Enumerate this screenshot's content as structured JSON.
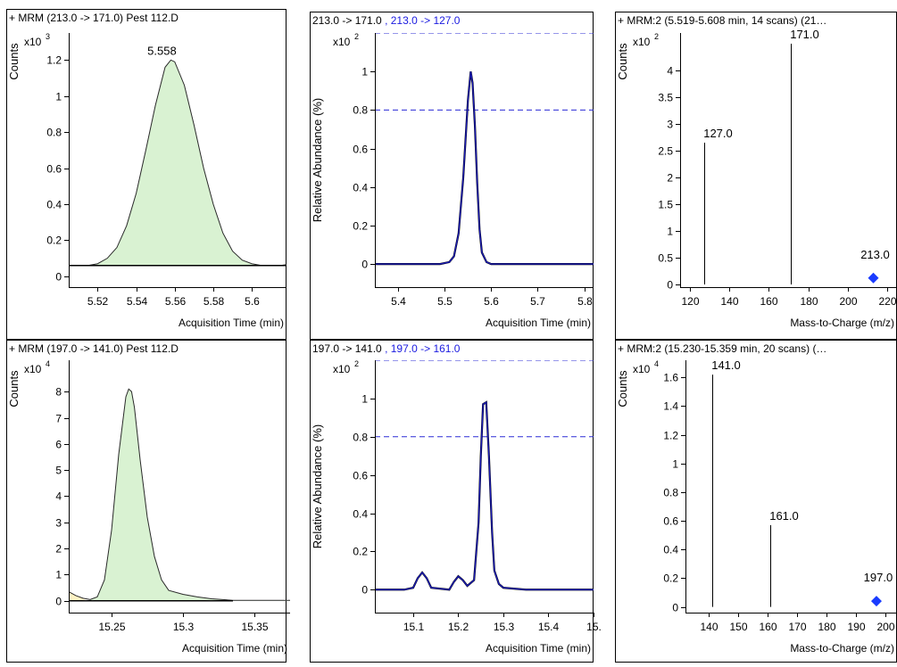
{
  "colors": {
    "peak_fill": "#d9f2d2",
    "peak_line": "#2a2a2a",
    "trace_blue": "#1a1ab4",
    "ref_dash": "#2b2bd6",
    "qualifier_text": "#1a1ae0",
    "marker": "#1a3cff",
    "yellow_fill": "#fff3c4"
  },
  "chart_data": [
    {
      "type": "area",
      "header": "+ MRM (213.0 -> 171.0) Pest 112.D",
      "ylabel": "Counts",
      "scale_label": "x10",
      "scale_exp": "3",
      "xlabel": "Acquisition Time (min)",
      "xlim": [
        5.505,
        5.618
      ],
      "ylim": [
        -0.06,
        1.35
      ],
      "xticks": [
        "5.52",
        "5.54",
        "5.56",
        "5.58",
        "5.6"
      ],
      "yticks": [
        "0",
        "0.2",
        "0.4",
        "0.6",
        "0.8",
        "1",
        "1.2"
      ],
      "peak_label": "5.558",
      "peak_x": 5.558,
      "peak_y": 1.2,
      "x": [
        5.505,
        5.515,
        5.52,
        5.525,
        5.53,
        5.535,
        5.54,
        5.545,
        5.55,
        5.555,
        5.558,
        5.56,
        5.565,
        5.57,
        5.575,
        5.58,
        5.585,
        5.59,
        5.595,
        5.6,
        5.605,
        5.61,
        5.615,
        5.618
      ],
      "y": [
        0.06,
        0.06,
        0.07,
        0.1,
        0.16,
        0.28,
        0.46,
        0.7,
        0.95,
        1.16,
        1.2,
        1.19,
        1.06,
        0.84,
        0.6,
        0.4,
        0.24,
        0.14,
        0.09,
        0.07,
        0.06,
        0.06,
        0.06,
        0.065
      ],
      "baseline": 0.06
    },
    {
      "type": "line",
      "header": "213.0 -> 171.0",
      "header_qualifier": " , 213.0 -> 127.0",
      "ylabel": "Relative Abundance (%)",
      "scale_label": "x10",
      "scale_exp": "2",
      "xlabel": "Acquisition Time (min)",
      "xlim": [
        5.35,
        5.82
      ],
      "ylim": [
        -0.12,
        1.2
      ],
      "xticks": [
        "5.4",
        "5.5",
        "5.6",
        "5.7",
        "5.8"
      ],
      "yticks": [
        "0",
        "0.2",
        "0.4",
        "0.6",
        "0.8",
        "1"
      ],
      "ref_lines": [
        0.8,
        1.2
      ],
      "x": [
        5.35,
        5.45,
        5.49,
        5.51,
        5.52,
        5.53,
        5.54,
        5.55,
        5.556,
        5.56,
        5.565,
        5.57,
        5.575,
        5.58,
        5.59,
        5.6,
        5.65,
        5.7,
        5.75,
        5.8,
        5.82
      ],
      "y": [
        0,
        0,
        0,
        0.01,
        0.04,
        0.16,
        0.45,
        0.85,
        1.0,
        0.94,
        0.72,
        0.42,
        0.18,
        0.06,
        0.01,
        0,
        0,
        0,
        0,
        0,
        0
      ]
    },
    {
      "type": "bar",
      "header": "+ MRM:2 (5.519-5.608 min, 14 scans) (21…",
      "ylabel": "Counts",
      "scale_label": "x10",
      "scale_exp": "2",
      "xlabel": "Mass-to-Charge (m/z)",
      "xlim": [
        115,
        225
      ],
      "ylim": [
        -0.05,
        4.7
      ],
      "xticks": [
        "120",
        "140",
        "160",
        "180",
        "200",
        "220"
      ],
      "yticks": [
        "0",
        "0.5",
        "1",
        "1.5",
        "2",
        "2.5",
        "3",
        "3.5",
        "4"
      ],
      "peaks": [
        {
          "mz": 127.0,
          "value": 2.65,
          "label": "127.0"
        },
        {
          "mz": 171.0,
          "value": 4.5,
          "label": "171.0"
        }
      ],
      "marker": {
        "mz": 213.0,
        "value": 0.12,
        "label": "213.0"
      }
    },
    {
      "type": "area",
      "header": "+ MRM (197.0 -> 141.0) Pest 112.D",
      "ylabel": "Counts",
      "scale_label": "x10",
      "scale_exp": "4",
      "xlabel": "Acquisition Time (min)",
      "xlim": [
        15.22,
        15.375
      ],
      "ylim": [
        -0.45,
        9.2
      ],
      "xticks": [
        "15.25",
        "15.3",
        "15.35"
      ],
      "yticks": [
        "0",
        "1",
        "2",
        "3",
        "4",
        "5",
        "6",
        "7",
        "8"
      ],
      "x": [
        15.22,
        15.225,
        15.23,
        15.235,
        15.24,
        15.245,
        15.25,
        15.255,
        15.26,
        15.262,
        15.264,
        15.266,
        15.27,
        15.275,
        15.28,
        15.285,
        15.29,
        15.3,
        15.31,
        15.32,
        15.335,
        15.36,
        15.375
      ],
      "y": [
        0.35,
        0.2,
        0.1,
        0.05,
        0.15,
        0.8,
        2.7,
        5.6,
        7.8,
        8.1,
        8.0,
        7.4,
        5.4,
        3.2,
        1.7,
        0.8,
        0.4,
        0.25,
        0.15,
        0.08,
        0.02,
        0.02,
        0.02
      ],
      "yellow_region": [
        15.22,
        15.232
      ],
      "baseline_end": 15.335
    },
    {
      "type": "line",
      "header": "197.0 -> 141.0",
      "header_qualifier": " , 197.0 -> 161.0",
      "ylabel": "Relative Abundance (%)",
      "scale_label": "x10",
      "scale_exp": "2",
      "xlabel": "Acquisition Time (min)",
      "xlim": [
        15.015,
        15.5
      ],
      "ylim": [
        -0.12,
        1.2
      ],
      "xticks": [
        "15.1",
        "15.2",
        "15.3",
        "15.4",
        "15."
      ],
      "yticks": [
        "0",
        "0.2",
        "0.4",
        "0.6",
        "0.8",
        "1"
      ],
      "ref_lines": [
        0.8,
        1.2
      ],
      "x": [
        15.015,
        15.08,
        15.1,
        15.11,
        15.12,
        15.13,
        15.14,
        15.18,
        15.19,
        15.2,
        15.21,
        15.22,
        15.235,
        15.245,
        15.25,
        15.255,
        15.262,
        15.268,
        15.275,
        15.28,
        15.29,
        15.3,
        15.35,
        15.4,
        15.5
      ],
      "y": [
        0,
        0,
        0.01,
        0.06,
        0.09,
        0.06,
        0.01,
        0,
        0.04,
        0.07,
        0.05,
        0.02,
        0.05,
        0.35,
        0.7,
        0.97,
        0.98,
        0.7,
        0.3,
        0.1,
        0.03,
        0.01,
        0,
        0,
        0
      ]
    },
    {
      "type": "bar",
      "header": "+ MRM:2 (15.230-15.359 min, 20 scans) (…",
      "ylabel": "Counts",
      "scale_label": "x10",
      "scale_exp": "4",
      "xlabel": "Mass-to-Charge (m/z)",
      "xlim": [
        132,
        204
      ],
      "ylim": [
        -0.04,
        1.72
      ],
      "xticks": [
        "140",
        "150",
        "160",
        "170",
        "180",
        "190",
        "200"
      ],
      "yticks": [
        "0",
        "0.2",
        "0.4",
        "0.6",
        "0.8",
        "1",
        "1.2",
        "1.4",
        "1.6"
      ],
      "peaks": [
        {
          "mz": 141.0,
          "value": 1.62,
          "label": "141.0"
        },
        {
          "mz": 161.0,
          "value": 0.57,
          "label": "161.0"
        }
      ],
      "marker": {
        "mz": 197.0,
        "value": 0.04,
        "label": "197.0"
      }
    }
  ]
}
